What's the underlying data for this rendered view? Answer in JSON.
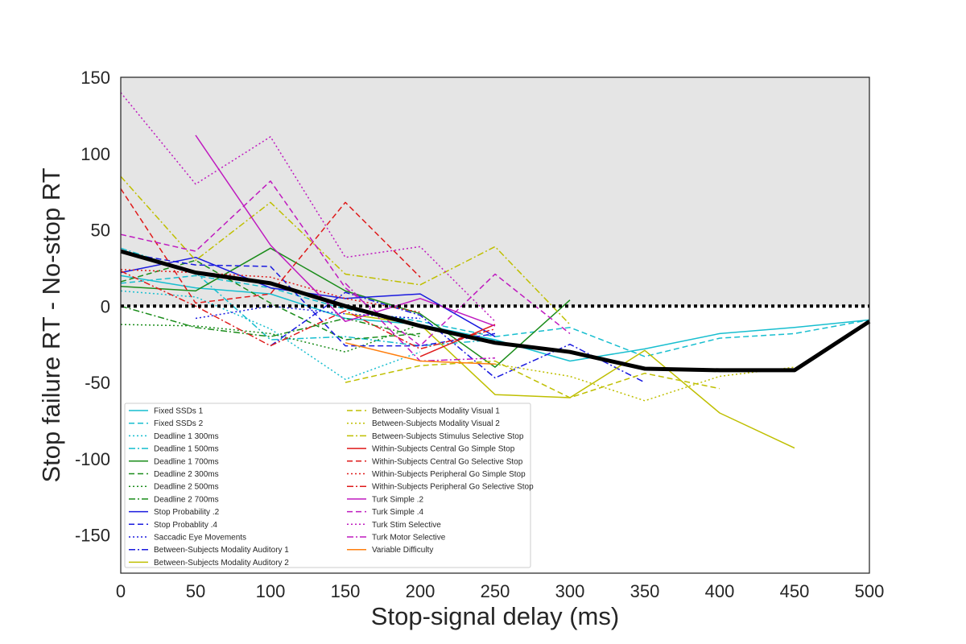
{
  "chart_data": {
    "type": "line",
    "title": "",
    "xlabel": "Stop-signal delay (ms)",
    "ylabel": "Stop failure RT - No-stop RT",
    "xlim": [
      0,
      500
    ],
    "ylim": [
      -175,
      150
    ],
    "xticks": [
      0,
      50,
      100,
      150,
      200,
      250,
      300,
      350,
      400,
      450,
      500
    ],
    "yticks": [
      150,
      100,
      50,
      0,
      -50,
      -100,
      -150
    ],
    "xtick_labels": [
      "0",
      "50",
      "100",
      "150",
      "200",
      "250",
      "300",
      "350",
      "400",
      "450",
      "500"
    ],
    "ytick_labels": [
      "150",
      "100",
      "50",
      "0",
      "-50",
      "-100",
      "-150"
    ],
    "shaded_region": {
      "y_from": 0,
      "y_to": 150,
      "color": "#e5e5e5"
    },
    "reference_line": {
      "y": 0,
      "color": "#000000",
      "style": "dotted"
    },
    "grid": false,
    "legend_position": "lower-left",
    "series": [
      {
        "name": "Fixed SSDs 1",
        "color": "#17becf",
        "dash": "solid",
        "points": [
          [
            0,
            20
          ],
          [
            50,
            12
          ],
          [
            100,
            8
          ],
          [
            150,
            -8
          ],
          [
            200,
            -12
          ],
          [
            250,
            -22
          ],
          [
            300,
            -36
          ],
          [
            350,
            -28
          ],
          [
            400,
            -18
          ],
          [
            450,
            -14
          ],
          [
            500,
            -9
          ]
        ]
      },
      {
        "name": "Fixed SSDs 2",
        "color": "#17becf",
        "dash": "dashed",
        "points": [
          [
            0,
            15
          ],
          [
            50,
            20
          ],
          [
            100,
            12
          ],
          [
            150,
            -2
          ],
          [
            200,
            -10
          ],
          [
            250,
            -20
          ],
          [
            300,
            -14
          ],
          [
            350,
            -33
          ],
          [
            400,
            -21
          ],
          [
            450,
            -18
          ],
          [
            500,
            -9
          ]
        ]
      },
      {
        "name": "Deadline 1 300ms",
        "color": "#17becf",
        "dash": "dotted",
        "points": [
          [
            0,
            10
          ],
          [
            50,
            6
          ],
          [
            100,
            -15
          ],
          [
            150,
            -48
          ],
          [
            200,
            -30
          ]
        ]
      },
      {
        "name": "Deadline 1 500ms",
        "color": "#17becf",
        "dash": "dashdot",
        "points": [
          [
            0,
            38
          ],
          [
            50,
            22
          ],
          [
            100,
            -22
          ],
          [
            150,
            -20
          ],
          [
            200,
            -26
          ],
          [
            250,
            -22
          ]
        ]
      },
      {
        "name": "Deadline 1 700ms",
        "color": "#1a8c1a",
        "dash": "solid",
        "points": [
          [
            0,
            13
          ],
          [
            50,
            10
          ],
          [
            100,
            38
          ],
          [
            150,
            10
          ],
          [
            200,
            -5
          ],
          [
            250,
            -40
          ],
          [
            300,
            4
          ]
        ]
      },
      {
        "name": "Deadline 2 300ms",
        "color": "#1a8c1a",
        "dash": "dashed",
        "points": [
          [
            0,
            16
          ],
          [
            50,
            30
          ],
          [
            100,
            2
          ],
          [
            150,
            -22
          ],
          [
            200,
            -18
          ]
        ]
      },
      {
        "name": "Deadline 2 500ms",
        "color": "#1a8c1a",
        "dash": "dotted",
        "points": [
          [
            0,
            -12
          ],
          [
            50,
            -13
          ],
          [
            100,
            -18
          ],
          [
            150,
            -30
          ],
          [
            200,
            -12
          ]
        ]
      },
      {
        "name": "Deadline 2 700ms",
        "color": "#1a8c1a",
        "dash": "dashdot",
        "points": [
          [
            0,
            0
          ],
          [
            50,
            -14
          ],
          [
            100,
            -20
          ],
          [
            150,
            -8
          ],
          [
            200,
            -20
          ]
        ]
      },
      {
        "name": "Stop Probability .2",
        "color": "#1a1adf",
        "dash": "solid",
        "points": [
          [
            0,
            22
          ],
          [
            50,
            32
          ],
          [
            100,
            12
          ],
          [
            150,
            5
          ],
          [
            200,
            8
          ],
          [
            250,
            -20
          ]
        ]
      },
      {
        "name": "Stop Probablity .4",
        "color": "#1a1adf",
        "dash": "dashed",
        "points": [
          [
            0,
            35
          ],
          [
            50,
            27
          ],
          [
            100,
            26
          ],
          [
            150,
            -26
          ],
          [
            200,
            -26
          ],
          [
            250,
            -18
          ]
        ]
      },
      {
        "name": "Saccadic Eye Movements",
        "color": "#1a1adf",
        "dash": "dotted",
        "points": [
          [
            50,
            -8
          ],
          [
            100,
            0
          ],
          [
            150,
            -5
          ],
          [
            200,
            -8
          ]
        ]
      },
      {
        "name": "Between-Subjects Modality Auditory 1",
        "color": "#1a1adf",
        "dash": "dashdot",
        "points": [
          [
            100,
            -26
          ],
          [
            150,
            9
          ],
          [
            200,
            -6
          ],
          [
            250,
            -47
          ],
          [
            300,
            -25
          ],
          [
            350,
            -50
          ]
        ]
      },
      {
        "name": "Between-Subjects Modality Auditory 2",
        "color": "#bfbf00",
        "dash": "solid",
        "points": [
          [
            150,
            -5
          ],
          [
            200,
            -12
          ],
          [
            250,
            -58
          ],
          [
            300,
            -60
          ],
          [
            350,
            -29
          ],
          [
            400,
            -70
          ],
          [
            450,
            -93
          ]
        ]
      },
      {
        "name": "Between-Subjects Modality Visual 1",
        "color": "#bfbf00",
        "dash": "dashed",
        "points": [
          [
            150,
            -50
          ],
          [
            200,
            -39
          ],
          [
            250,
            -36
          ],
          [
            300,
            -60
          ],
          [
            350,
            -44
          ],
          [
            400,
            -54
          ]
        ]
      },
      {
        "name": "Between-Subjects Modality Visual 2",
        "color": "#bfbf00",
        "dash": "dotted",
        "points": [
          [
            250,
            -38
          ],
          [
            300,
            -46
          ],
          [
            350,
            -62
          ],
          [
            400,
            -46
          ],
          [
            450,
            -40
          ]
        ]
      },
      {
        "name": "Between-Subjects Stimulus Selective Stop",
        "color": "#bfbf00",
        "dash": "dashdot",
        "points": [
          [
            0,
            85
          ],
          [
            50,
            30
          ],
          [
            100,
            68
          ],
          [
            150,
            21
          ],
          [
            200,
            14
          ],
          [
            250,
            39
          ],
          [
            300,
            -12
          ]
        ]
      },
      {
        "name": "Within-Subjects Central Go Simple Stop",
        "color": "#df1a1a",
        "dash": "solid",
        "points": [
          [
            200,
            -33
          ],
          [
            250,
            -12
          ]
        ]
      },
      {
        "name": "Within-Subjects Central Go Selective Stop",
        "color": "#df1a1a",
        "dash": "dashed",
        "points": [
          [
            0,
            77
          ],
          [
            50,
            2
          ],
          [
            100,
            8
          ],
          [
            150,
            68
          ],
          [
            200,
            19
          ]
        ]
      },
      {
        "name": "Within-Subjects Peripheral Go Simple Stop",
        "color": "#df1a1a",
        "dash": "dotted",
        "points": [
          [
            0,
            24
          ],
          [
            50,
            22
          ],
          [
            100,
            19
          ],
          [
            150,
            5
          ],
          [
            200,
            -4
          ]
        ]
      },
      {
        "name": "Within-Subjects Peripheral Go Selective Stop",
        "color": "#df1a1a",
        "dash": "dashdot",
        "points": [
          [
            0,
            23
          ],
          [
            50,
            0
          ],
          [
            100,
            -26
          ],
          [
            150,
            -3
          ],
          [
            200,
            -28
          ],
          [
            250,
            -15
          ]
        ]
      },
      {
        "name": "Turk Simple .2",
        "color": "#bf1abf",
        "dash": "solid",
        "points": [
          [
            50,
            112
          ],
          [
            100,
            40
          ],
          [
            150,
            -10
          ],
          [
            200,
            5
          ],
          [
            250,
            -13
          ]
        ]
      },
      {
        "name": "Turk Simple .4",
        "color": "#bf1abf",
        "dash": "dashed",
        "points": [
          [
            0,
            47
          ],
          [
            50,
            36
          ],
          [
            100,
            82
          ],
          [
            150,
            12
          ],
          [
            200,
            -26
          ],
          [
            250,
            21
          ],
          [
            300,
            -18
          ]
        ]
      },
      {
        "name": "Turk Stim Selective",
        "color": "#bf1abf",
        "dash": "dotted",
        "points": [
          [
            0,
            140
          ],
          [
            50,
            80
          ],
          [
            100,
            111
          ],
          [
            150,
            32
          ],
          [
            200,
            39
          ],
          [
            250,
            -10
          ]
        ]
      },
      {
        "name": "Turk Motor Selective",
        "color": "#bf1abf",
        "dash": "dashdot",
        "points": [
          [
            150,
            15
          ],
          [
            200,
            -36
          ],
          [
            250,
            -34
          ]
        ]
      },
      {
        "name": "Variable Difficulty",
        "color": "#ff7f0e",
        "dash": "solid",
        "points": [
          [
            150,
            -24
          ],
          [
            200,
            -36
          ],
          [
            250,
            -38
          ]
        ]
      },
      {
        "name": "",
        "color": "#000000",
        "dash": "solid",
        "width": 5,
        "points": [
          [
            0,
            36
          ],
          [
            50,
            22
          ],
          [
            100,
            15
          ],
          [
            150,
            0
          ],
          [
            200,
            -13
          ],
          [
            250,
            -24
          ],
          [
            300,
            -30
          ],
          [
            350,
            -41
          ],
          [
            400,
            -42
          ],
          [
            450,
            -42
          ],
          [
            500,
            -10
          ]
        ]
      }
    ]
  }
}
